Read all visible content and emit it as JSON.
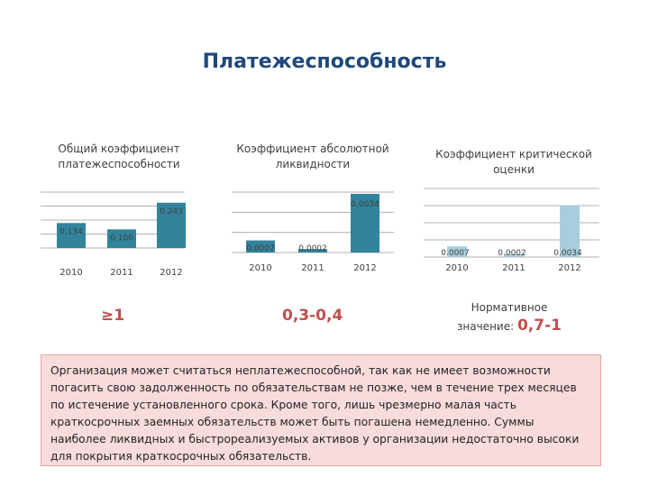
{
  "title": "Платежеспособность",
  "summary": "Организация может считаться неплатежеспособной, так как не имеет возможности погасить свою задолженность по обязательствам не позже, чем в течение трех месяцев по истечение установленного срока. Кроме того, лишь чрезмерно малая часть краткосрочных заемных обязательств может быть погашена немедленно. Суммы наиболее ликвидных и быстрореализуемых активов у организации недостаточно высоки для покрытия краткосрочных обязательств.",
  "norms": {
    "chart1": "≥1",
    "chart2": "0,3-0,4",
    "chart3_label_line1": "Нормативное",
    "chart3_label_line2": "значение:",
    "chart3_value": "0,7-1"
  },
  "colors": {
    "title": "#1f497d",
    "bar_chart1": "#31849b",
    "bar_chart2": "#31849b",
    "bar_chart3": "#a8cddc",
    "norm": "#c0504d"
  },
  "chart_data": [
    {
      "type": "bar",
      "title": "Общий коэффициент платежеспособности",
      "categories": [
        "2010",
        "2011",
        "2012"
      ],
      "values": [
        0.134,
        0.1,
        0.243
      ],
      "labels": [
        "0.134",
        "0.100",
        "0.243"
      ],
      "ylim": [
        0,
        0.3
      ],
      "grid": true
    },
    {
      "type": "bar",
      "title": "Коэффициент абсолютной ликвидности",
      "categories": [
        "2010",
        "2011",
        "2012"
      ],
      "values": [
        0.0007,
        0.0002,
        0.0034
      ],
      "labels": [
        "0.0007",
        "0.0002",
        "0.0034"
      ],
      "ylim": [
        0,
        0.0035
      ],
      "grid": true
    },
    {
      "type": "bar",
      "title": "Коэффициент критической оценки",
      "categories": [
        "2010",
        "2011",
        "2012"
      ],
      "values": [
        0.0007,
        0.0002,
        0.0034
      ],
      "labels": [
        "0.0007",
        "0.0002",
        "0.0034"
      ],
      "ylim": [
        0,
        0.0045
      ],
      "grid": true
    }
  ]
}
